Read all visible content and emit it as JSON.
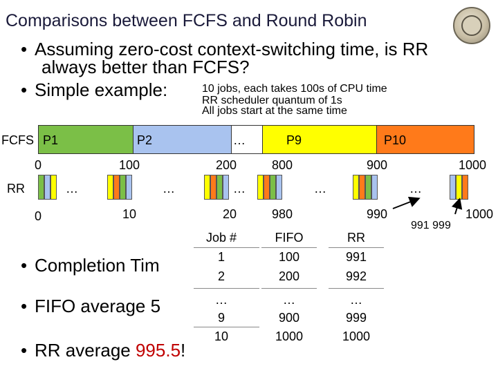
{
  "title": "Comparisons between FCFS and Round Robin",
  "bullets": {
    "b1_line1": "Assuming zero-cost context-switching time, is RR",
    "b1_line2": "always better than FCFS?",
    "b2": "Simple example:",
    "b2_detail1": "10 jobs, each takes 100s of CPU time",
    "b2_detail2": "RR scheduler quantum of 1s",
    "b2_detail3": "All jobs start at the same time",
    "completion": "Completion Tim",
    "fifo_avg": "FIFO average 5",
    "rr_avg_prefix": "RR average ",
    "rr_avg_value": "995.5",
    "rr_avg_suffix": "!"
  },
  "fcfs": {
    "label": "FCFS",
    "p1": "P1",
    "p2": "P2",
    "dots": "…",
    "p9": "P9",
    "p10": "P10",
    "t0": "0",
    "t100": "100",
    "t200": "200",
    "t800": "800",
    "t900": "900",
    "t1000": "1000"
  },
  "rr": {
    "label": "RR",
    "dots": "…",
    "t0": "0",
    "t10": "10",
    "t20": "20",
    "t980": "980",
    "t990": "990",
    "t1000": "1000",
    "t991_999": "991  999"
  },
  "table": {
    "headers": [
      "Job #",
      "FIFO",
      "RR"
    ],
    "rows": [
      [
        "1",
        "100",
        "991"
      ],
      [
        "2",
        "200",
        "992"
      ],
      [
        "…",
        "…",
        "…"
      ],
      [
        "9",
        "900",
        "999"
      ],
      [
        "10",
        "1000",
        "1000"
      ]
    ]
  },
  "colors": {
    "p1": "#7bbf47",
    "p2": "#a9c3ef",
    "p9": "#ffff00",
    "p10": "#ff7a1a",
    "accent_red": "#c00000"
  }
}
